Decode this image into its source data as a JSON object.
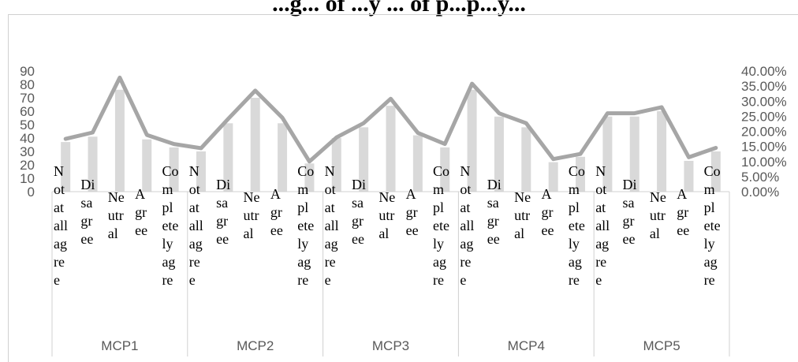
{
  "chart_data": {
    "type": "bar",
    "title": "...g... of ...y ... of p...p...y...",
    "groups": [
      "MCP1",
      "MCP2",
      "MCP3",
      "MCP4",
      "MCP5"
    ],
    "categories_wrapped": [
      [
        "N",
        "ot",
        "at",
        "all",
        "ag",
        "re",
        "e"
      ],
      [
        "Di",
        "sa",
        "gr",
        "ee"
      ],
      [
        "Ne",
        "utr",
        "al"
      ],
      [
        "A",
        "gr",
        "ee"
      ],
      [
        "Co",
        "m",
        "pl",
        "ete",
        "ly",
        "ag",
        "re"
      ]
    ],
    "series": [
      {
        "kind": "bar",
        "axis": "left",
        "color": "#d9d9d9",
        "values": [
          [
            37,
            41,
            76,
            39,
            33
          ],
          [
            30,
            51,
            70,
            51,
            21
          ],
          [
            40,
            48,
            64,
            42,
            33
          ],
          [
            76,
            56,
            48,
            22,
            26
          ],
          [
            56,
            56,
            60,
            23,
            30
          ]
        ]
      },
      {
        "kind": "line",
        "axis": "right",
        "color": "#a6a6a6",
        "values": [
          [
            0.175,
            0.196,
            0.378,
            0.188,
            0.158
          ],
          [
            0.144,
            0.241,
            0.335,
            0.245,
            0.1
          ],
          [
            0.18,
            0.227,
            0.308,
            0.195,
            0.158
          ],
          [
            0.358,
            0.26,
            0.227,
            0.108,
            0.125
          ],
          [
            0.26,
            0.26,
            0.28,
            0.114,
            0.145
          ]
        ]
      }
    ],
    "left_axis": {
      "min": 0,
      "max": 90,
      "step": 10,
      "ticks": [
        "0",
        "10",
        "20",
        "30",
        "40",
        "50",
        "60",
        "70",
        "80",
        "90"
      ]
    },
    "right_axis": {
      "min": 0,
      "max": 0.4,
      "step": 0.05,
      "ticks": [
        "0.00%",
        "5.00%",
        "10.00%",
        "15.00%",
        "20.00%",
        "25.00%",
        "30.00%",
        "35.00%",
        "40.00%"
      ]
    },
    "grid": false,
    "legend": "none"
  }
}
